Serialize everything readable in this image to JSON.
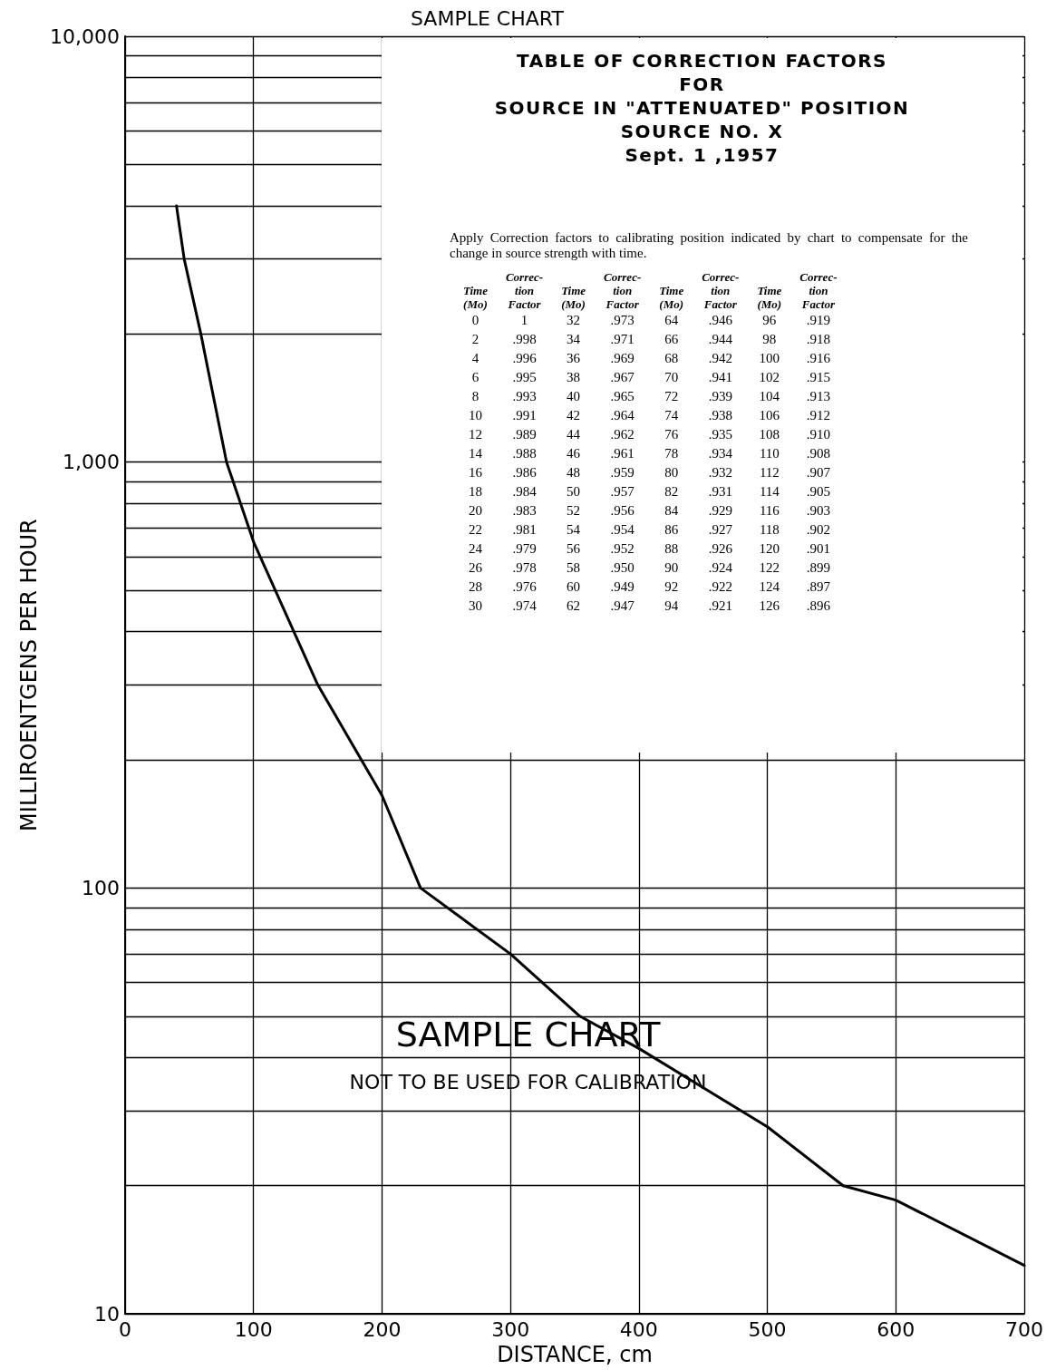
{
  "chart_data": {
    "type": "line",
    "title": "SAMPLE CHART",
    "xlabel": "DISTANCE, cm",
    "ylabel": "MILLIROENTGENS PER HOUR",
    "x": [
      40,
      46,
      59,
      79,
      100,
      150,
      200,
      230,
      300,
      354,
      400,
      500,
      559,
      600,
      700
    ],
    "series": [
      {
        "color": "#000000",
        "values": [
          4000,
          3000,
          2000,
          1000,
          650,
          300,
          165,
          100,
          70,
          50,
          42,
          27.5,
          20,
          18.5,
          13
        ]
      }
    ],
    "xlim": [
      0,
      700
    ],
    "xticks": [
      0,
      100,
      200,
      300,
      400,
      500,
      600,
      700
    ],
    "ylim": [
      10,
      10000
    ],
    "yticks": [
      10,
      100,
      {
        "value": 1000,
        "label": "1,000"
      },
      {
        "value": 10000,
        "label": "10,000"
      }
    ],
    "log": "y",
    "grid": true,
    "marker": "none",
    "line_style": "solid",
    "annotations": [
      "TABLE OF CORRECTION FACTORS",
      "FOR",
      "SOURCE IN \"ATTENUATED\" POSITION",
      "SOURCE NO. X",
      "Sept. 1 ,1957",
      "Apply Correction factors to calibrating position indicated by chart to compensate for the change in source strength with time.",
      "Time (Mo)",
      "Correc- tion Factor",
      "Time (Mo)",
      "Correc- tion Factor",
      "Time (Mo)",
      "Correc- tion Factor",
      "Time (Mo)",
      "Correc- tion Factor",
      "0 1 32 .973 64 .946 96 .919",
      "2 .998 34 .971 66 .944 98 .918",
      "4 .996 36 .969 68 .942 100 .916",
      "6 .995 38 .967 70 .941 102 .915",
      "8 .993 40 .965 72 .939 104 .913",
      "10 .991 42 .964 74 .938 106 .912",
      "12 .989 44 .962 76 .935 108 .910",
      "14 .988 46 .961 78 .934 110 .908",
      "16 .986 48 .959 80 .932 112 .907",
      "18 .984 50 .957 82 .931 114 .905",
      "20 .983 52 .956 84 .929 116 .903",
      "22 .981 54 .954 86 .927 118 .902",
      "24 .979 56 .952 88 .926 120 .901",
      "26 .978 58 .950 90 .924 122 .899",
      "28 .976 60 .949 92 .922 124 .897",
      "30 .974 62 .947 94 .921 126 .896",
      "SAMPLE CHART",
      "NOT TO BE USED FOR CALIBRATION"
    ]
  }
}
